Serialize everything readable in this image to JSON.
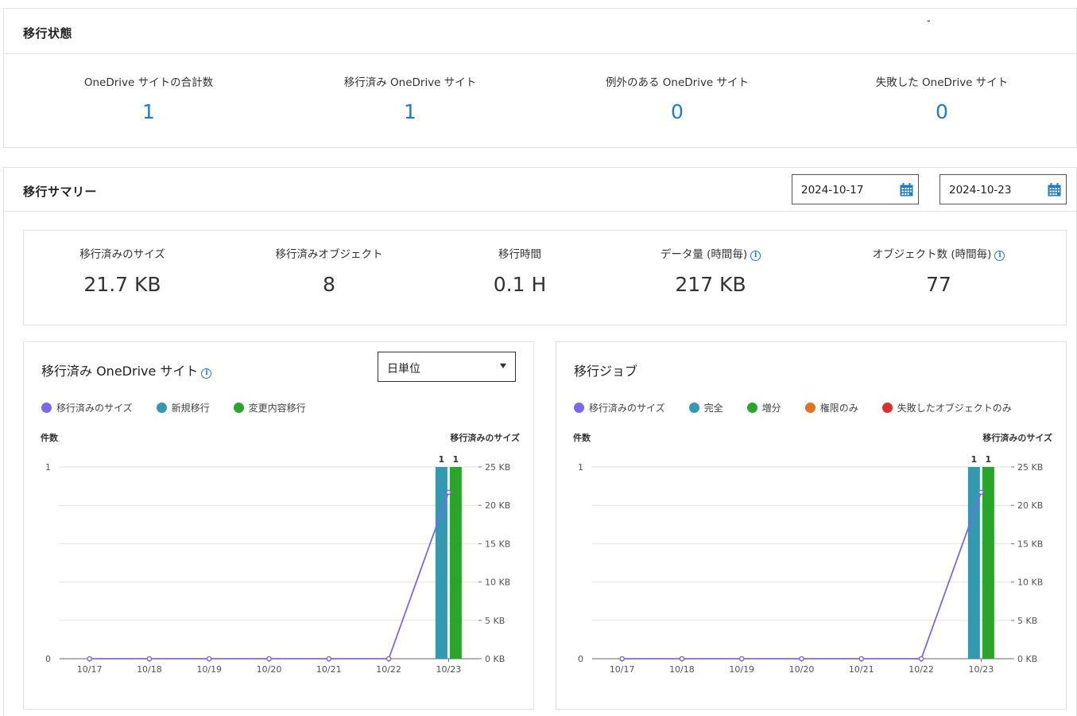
{
  "status": {
    "title": "移行状態",
    "stats": [
      {
        "label": "OneDrive サイトの合計数",
        "value": "1"
      },
      {
        "label": "移行済み OneDrive サイト",
        "value": "1"
      },
      {
        "label": "例外のある OneDrive サイト",
        "value": "0"
      },
      {
        "label": "失敗した OneDrive サイト",
        "value": "0"
      }
    ]
  },
  "summary": {
    "title": "移行サマリー",
    "date_from": "2024-10-17",
    "date_to": "2024-10-23",
    "date_sep": "-",
    "stats": [
      {
        "label": "移行済みのサイズ",
        "value": "21.7 KB"
      },
      {
        "label": "移行済みオブジェクト",
        "value": "8"
      },
      {
        "label": "移行時間",
        "value": "0.1 H"
      },
      {
        "label": "データ量 (時間毎)",
        "value": "217 KB",
        "info": "i"
      },
      {
        "label": "オブジェクト数 (時間毎)",
        "value": "77",
        "info": "i"
      }
    ]
  },
  "colors": {
    "size_line": "#7b68ee",
    "blue_bar": "#3499b0",
    "green_bar": "#2aa52a",
    "orange": "#e0731f",
    "red": "#d9322b",
    "accent": "#1e7bc6"
  },
  "sites_chart": {
    "title": "移行済み OneDrive サイト",
    "info": "i",
    "granularity": "日単位",
    "legend": [
      {
        "label": "移行済みのサイズ",
        "color": "#7b68ee"
      },
      {
        "label": "新規移行",
        "color": "#3499b0"
      },
      {
        "label": "変更内容移行",
        "color": "#2aa52a"
      }
    ]
  },
  "jobs_chart": {
    "title": "移行ジョブ",
    "legend": [
      {
        "label": "移行済みのサイズ",
        "color": "#7b68ee"
      },
      {
        "label": "完全",
        "color": "#3499b0"
      },
      {
        "label": "増分",
        "color": "#2aa52a"
      },
      {
        "label": "権限のみ",
        "color": "#e0731f"
      },
      {
        "label": "失敗したオブジェクトのみ",
        "color": "#d9322b"
      }
    ]
  },
  "chart_data": [
    {
      "type": "bar",
      "title": "移行済み OneDrive サイト",
      "ylabel": "件数",
      "y2label": "移行済みのサイズ",
      "categories": [
        "10/17",
        "10/18",
        "10/19",
        "10/20",
        "10/21",
        "10/22",
        "10/23"
      ],
      "ylim": [
        0,
        1
      ],
      "y_ticks": [
        "0",
        "1"
      ],
      "y2lim": [
        0,
        25
      ],
      "y2_ticks": [
        "0 KB",
        "5 KB",
        "10 KB",
        "15 KB",
        "20 KB",
        "25 KB"
      ],
      "series": [
        {
          "name": "新規移行",
          "kind": "bar",
          "values": [
            0,
            0,
            0,
            0,
            0,
            0,
            1
          ],
          "color": "#3499b0"
        },
        {
          "name": "変更内容移行",
          "kind": "bar",
          "values": [
            0,
            0,
            0,
            0,
            0,
            0,
            1
          ],
          "color": "#2aa52a"
        },
        {
          "name": "移行済みのサイズ",
          "kind": "line",
          "axis": "y2",
          "values": [
            0,
            0,
            0,
            0,
            0,
            0,
            21.7
          ],
          "color": "#7b68ee"
        }
      ]
    },
    {
      "type": "bar",
      "title": "移行ジョブ",
      "ylabel": "件数",
      "y2label": "移行済みのサイズ",
      "categories": [
        "10/17",
        "10/18",
        "10/19",
        "10/20",
        "10/21",
        "10/22",
        "10/23"
      ],
      "ylim": [
        0,
        1
      ],
      "y_ticks": [
        "0",
        "1"
      ],
      "y2lim": [
        0,
        25
      ],
      "y2_ticks": [
        "0 KB",
        "5 KB",
        "10 KB",
        "15 KB",
        "20 KB",
        "25 KB"
      ],
      "series": [
        {
          "name": "完全",
          "kind": "bar",
          "values": [
            0,
            0,
            0,
            0,
            0,
            0,
            1
          ],
          "color": "#3499b0"
        },
        {
          "name": "増分",
          "kind": "bar",
          "values": [
            0,
            0,
            0,
            0,
            0,
            0,
            1
          ],
          "color": "#2aa52a"
        },
        {
          "name": "権限のみ",
          "kind": "bar",
          "values": [
            0,
            0,
            0,
            0,
            0,
            0,
            0
          ],
          "color": "#e0731f"
        },
        {
          "name": "失敗したオブジェクトのみ",
          "kind": "bar",
          "values": [
            0,
            0,
            0,
            0,
            0,
            0,
            0
          ],
          "color": "#d9322b"
        },
        {
          "name": "移行済みのサイズ",
          "kind": "line",
          "axis": "y2",
          "values": [
            0,
            0,
            0,
            0,
            0,
            0,
            21.7
          ],
          "color": "#7b68ee"
        }
      ]
    }
  ]
}
